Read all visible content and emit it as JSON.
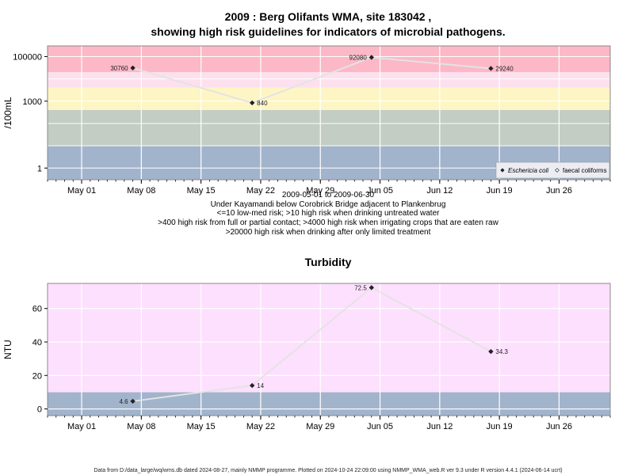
{
  "figure": {
    "footer": "Data from D:/data_large/wq/wms.db dated 2024-08-27, mainly NMMP programme. Plotted on 2024-10-24 22:09:00 using NMMP_WMA_web.R ver 9.3 under R version 4.4.1 (2024-06-14 ucrt)"
  },
  "chart_data": [
    {
      "type": "line",
      "title_line1": "2009 : Berg Olifants WMA, site 183042 ,",
      "title_line2": "showing high risk guidelines for indicators of microbial pathogens.",
      "ylabel": "/100mL",
      "yscale": "log",
      "ylim": [
        0.3,
        300000
      ],
      "yticks": [
        1,
        1000,
        100000
      ],
      "ytick_labels": [
        "1",
        "1000",
        "100000"
      ],
      "x_ticks": [
        "2009-05-01",
        "2009-05-08",
        "2009-05-15",
        "2009-05-22",
        "2009-05-29",
        "2009-06-05",
        "2009-06-12",
        "2009-06-19",
        "2009-06-26"
      ],
      "x_tick_labels": [
        "May 01",
        "May 08",
        "May 15",
        "May 22",
        "May 29",
        "Jun 05",
        "Jun 12",
        "Jun 19",
        "Jun 26"
      ],
      "xlim": [
        "2009-04-27",
        "2009-07-02"
      ],
      "bands": [
        {
          "from": 0.3,
          "to": 10,
          "color": "#a2b4cc"
        },
        {
          "from": 10,
          "to": 400,
          "color": "#c3cdc3"
        },
        {
          "from": 400,
          "to": 4000,
          "color": "#fdf6c4"
        },
        {
          "from": 4000,
          "to": 20000,
          "color": "#fde0ee"
        },
        {
          "from": 20000,
          "to": 300000,
          "color": "#fcb8c6"
        }
      ],
      "series": [
        {
          "name": "Eschericia coli",
          "x": [
            "2009-05-07",
            "2009-05-21",
            "2009-06-04",
            "2009-06-18"
          ],
          "y": [
            30760,
            840,
            92080,
            29240
          ],
          "labels": [
            "30760",
            "840",
            "92080",
            "29240"
          ],
          "label_side": [
            "left",
            "right",
            "left",
            "right"
          ],
          "marker": "filled-diamond"
        }
      ],
      "legend_series": [
        {
          "name": "Eschericia coli",
          "marker": "filled-diamond",
          "italic": true
        },
        {
          "name": "faecal coliforms",
          "marker": "open-diamond",
          "italic": false
        }
      ],
      "legend": "bottom-right",
      "grid": true,
      "subtitle_lines": [
        "2009-05-01 to 2009-06-30",
        "Under Kayamandi below Corobrick Bridge adjacent to Plankenbrug",
        "<=10 low-med risk; >10 high risk when drinking untreated water",
        ">400 high risk from full or partial contact; >4000 high risk when irrigating crops that are eaten raw",
        ">20000 high risk when drinking after only limited treatment"
      ]
    },
    {
      "type": "line",
      "title": "Turbidity",
      "ylabel": "NTU",
      "ylim": [
        -4,
        75
      ],
      "yticks": [
        0,
        20,
        40,
        60
      ],
      "ytick_labels": [
        "0",
        "20",
        "40",
        "60"
      ],
      "x_ticks": [
        "2009-05-01",
        "2009-05-08",
        "2009-05-15",
        "2009-05-22",
        "2009-05-29",
        "2009-06-05",
        "2009-06-12",
        "2009-06-19",
        "2009-06-26"
      ],
      "x_tick_labels": [
        "May 01",
        "May 08",
        "May 15",
        "May 22",
        "May 29",
        "Jun 05",
        "Jun 12",
        "Jun 19",
        "Jun 26"
      ],
      "xlim": [
        "2009-04-27",
        "2009-07-02"
      ],
      "bands": [
        {
          "from": -4,
          "to": 10,
          "color": "#a2b4cc"
        },
        {
          "from": 10,
          "to": 75,
          "color": "#fde0fd"
        }
      ],
      "series": [
        {
          "name": "Turbidity",
          "x": [
            "2009-05-07",
            "2009-05-21",
            "2009-06-04",
            "2009-06-18"
          ],
          "y": [
            4.6,
            14,
            72.5,
            34.3
          ],
          "labels": [
            "4.6",
            "14",
            "72.5",
            "34.3"
          ],
          "label_side": [
            "left",
            "right",
            "left",
            "right"
          ],
          "marker": "filled-diamond"
        }
      ],
      "grid": true
    }
  ],
  "colors": {
    "frame": "#888888",
    "grid": "#ffffff",
    "line": "#e3e3e3",
    "marker": "#222222"
  }
}
